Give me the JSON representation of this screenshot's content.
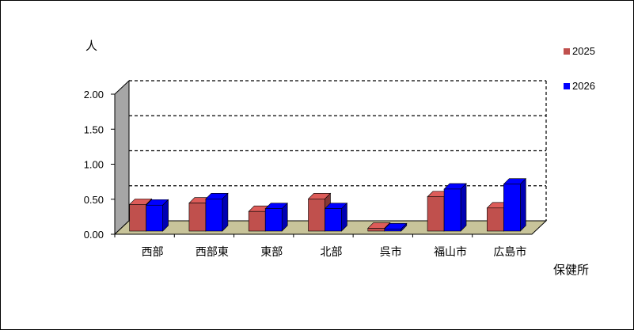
{
  "chart_data": {
    "type": "bar",
    "ylabel": "人",
    "xlabel": "保健所",
    "categories": [
      "西部",
      "西部東",
      "東部",
      "北部",
      "呉市",
      "福山市",
      "広島市"
    ],
    "series": [
      {
        "name": "2025",
        "color": "#c0504d",
        "values": [
          0.38,
          0.4,
          0.28,
          0.46,
          0.04,
          0.49,
          0.33
        ]
      },
      {
        "name": "2026",
        "color": "#0000ff",
        "values": [
          0.37,
          0.46,
          0.32,
          0.32,
          0.03,
          0.6,
          0.67
        ]
      }
    ],
    "ylim": [
      0,
      2.0
    ],
    "yticks": [
      "0.00",
      "0.50",
      "1.00",
      "1.50",
      "2.00"
    ],
    "grid": true,
    "legend_position": "right"
  }
}
